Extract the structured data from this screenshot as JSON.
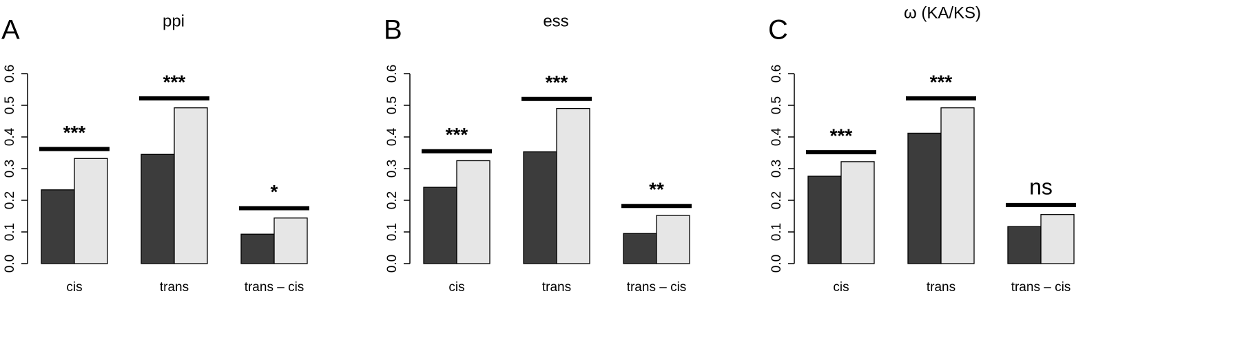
{
  "chart_data": [
    {
      "type": "bar",
      "panel": "A",
      "title": "ppi",
      "categories": [
        "cis",
        "trans",
        "trans – cis"
      ],
      "series": [
        {
          "color": "#3c3c3c",
          "values": [
            0.233,
            0.345,
            0.093
          ]
        },
        {
          "color": "#e6e6e6",
          "values": [
            0.332,
            0.492,
            0.144
          ]
        }
      ],
      "annotations": [
        {
          "text": "***",
          "y": 0.362
        },
        {
          "text": "***",
          "y": 0.522
        },
        {
          "text": "*",
          "y": 0.175
        }
      ],
      "ylim": [
        0,
        0.6
      ],
      "yticks": [
        {
          "value": 0,
          "label": "0.0"
        },
        0.1,
        0.2,
        0.3,
        0.4,
        0.5,
        0.6
      ]
    },
    {
      "type": "bar",
      "panel": "B",
      "title": "ess",
      "categories": [
        "cis",
        "trans",
        "trans – cis"
      ],
      "series": [
        {
          "color": "#3c3c3c",
          "values": [
            0.241,
            0.353,
            0.095
          ]
        },
        {
          "color": "#e6e6e6",
          "values": [
            0.325,
            0.49,
            0.152
          ]
        }
      ],
      "annotations": [
        {
          "text": "***",
          "y": 0.355
        },
        {
          "text": "***",
          "y": 0.52
        },
        {
          "text": "**",
          "y": 0.182
        }
      ],
      "ylim": [
        0,
        0.6
      ],
      "yticks": [
        {
          "value": 0,
          "label": "0.0"
        },
        0.1,
        0.2,
        0.3,
        0.4,
        0.5,
        0.6
      ]
    },
    {
      "type": "bar",
      "panel": "C",
      "title": "ω (KA/KS)",
      "categories": [
        "cis",
        "trans",
        "trans – cis"
      ],
      "series": [
        {
          "color": "#3c3c3c",
          "values": [
            0.276,
            0.412,
            0.117
          ]
        },
        {
          "color": "#e6e6e6",
          "values": [
            0.322,
            0.492,
            0.155
          ]
        }
      ],
      "annotations": [
        {
          "text": "***",
          "y": 0.352
        },
        {
          "text": "***",
          "y": 0.522
        },
        {
          "text": "ns",
          "y": 0.185
        }
      ],
      "ylim": [
        0,
        0.6
      ],
      "yticks": [
        {
          "value": 0,
          "label": "0.0"
        },
        0.1,
        0.2,
        0.3,
        0.4,
        0.5,
        0.6
      ]
    }
  ]
}
